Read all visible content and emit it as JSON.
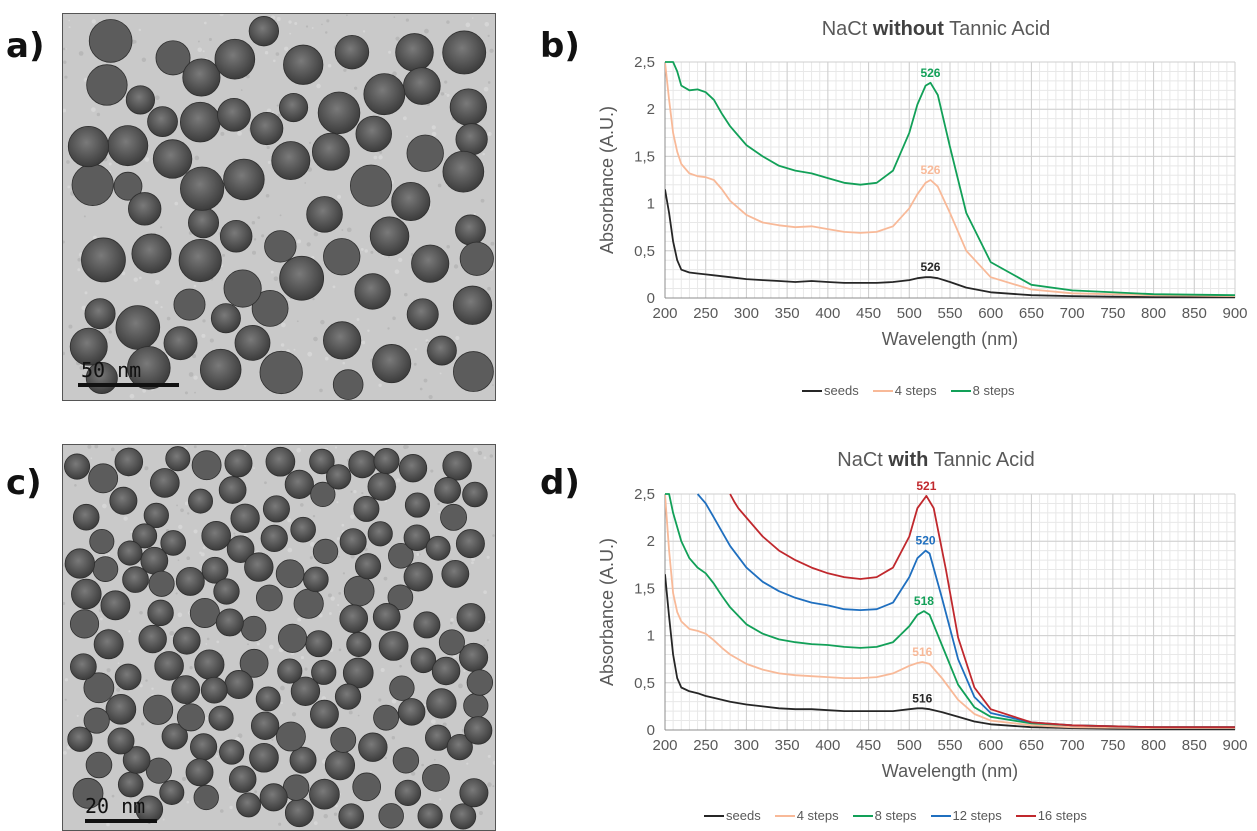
{
  "panels": {
    "a": {
      "label": "a)",
      "scale_label": "50 nm"
    },
    "b": {
      "label": "b)"
    },
    "c": {
      "label": "c)",
      "scale_label": "20 nm"
    },
    "d": {
      "label": "d)"
    }
  },
  "chart_data": [
    {
      "type": "line",
      "title_pre": "NaCt ",
      "title_bold": "without",
      "title_post": " Tannic Acid",
      "xlabel": "Wavelength (nm)",
      "ylabel": "Absorbance (A.U.)",
      "xlim": [
        200,
        900
      ],
      "ylim": [
        0,
        2.5
      ],
      "xticks": [
        "200",
        "250",
        "300",
        "350",
        "400",
        "450",
        "500",
        "550",
        "600",
        "650",
        "700",
        "750",
        "800",
        "850",
        "900"
      ],
      "yticks": [
        "0",
        "0,5",
        "1",
        "1,5",
        "2",
        "2,5"
      ],
      "grid": true,
      "legend_position": "bottom",
      "series": [
        {
          "name": "seeds",
          "color": "#262626",
          "peak_label": "526",
          "peak_x": 526,
          "peak_y": 0.22,
          "x": [
            200,
            205,
            210,
            215,
            220,
            230,
            240,
            250,
            260,
            280,
            300,
            320,
            340,
            360,
            380,
            400,
            420,
            440,
            460,
            480,
            500,
            510,
            520,
            526,
            535,
            550,
            570,
            600,
            650,
            700,
            800,
            900
          ],
          "y": [
            1.15,
            0.9,
            0.6,
            0.4,
            0.3,
            0.27,
            0.26,
            0.25,
            0.24,
            0.22,
            0.2,
            0.19,
            0.18,
            0.17,
            0.18,
            0.17,
            0.16,
            0.16,
            0.16,
            0.17,
            0.19,
            0.21,
            0.22,
            0.22,
            0.21,
            0.17,
            0.11,
            0.06,
            0.03,
            0.02,
            0.01,
            0.01
          ]
        },
        {
          "name": "4 steps",
          "color": "#F8B998",
          "peak_label": "526",
          "peak_x": 526,
          "peak_y": 1.25,
          "x": [
            200,
            205,
            210,
            215,
            220,
            230,
            240,
            250,
            260,
            270,
            280,
            300,
            320,
            340,
            360,
            380,
            400,
            420,
            440,
            460,
            480,
            500,
            510,
            520,
            526,
            535,
            550,
            570,
            600,
            650,
            700,
            800,
            900
          ],
          "y": [
            2.5,
            2.1,
            1.75,
            1.55,
            1.42,
            1.32,
            1.29,
            1.28,
            1.25,
            1.15,
            1.03,
            0.88,
            0.8,
            0.77,
            0.75,
            0.76,
            0.73,
            0.7,
            0.69,
            0.7,
            0.76,
            0.95,
            1.1,
            1.22,
            1.25,
            1.18,
            0.9,
            0.5,
            0.22,
            0.09,
            0.05,
            0.03,
            0.02
          ]
        },
        {
          "name": "8 steps",
          "color": "#12A058",
          "peak_label": "526",
          "peak_x": 526,
          "peak_y": 2.28,
          "x": [
            200,
            205,
            210,
            215,
            220,
            230,
            240,
            250,
            260,
            270,
            280,
            300,
            320,
            340,
            360,
            380,
            400,
            420,
            440,
            460,
            480,
            500,
            510,
            520,
            526,
            535,
            550,
            570,
            600,
            650,
            700,
            800,
            900
          ],
          "y": [
            2.5,
            2.5,
            2.5,
            2.4,
            2.25,
            2.2,
            2.21,
            2.18,
            2.1,
            1.95,
            1.82,
            1.62,
            1.5,
            1.4,
            1.35,
            1.32,
            1.27,
            1.22,
            1.2,
            1.22,
            1.35,
            1.75,
            2.05,
            2.25,
            2.28,
            2.15,
            1.6,
            0.9,
            0.38,
            0.14,
            0.08,
            0.04,
            0.03
          ]
        }
      ]
    },
    {
      "type": "line",
      "title_pre": "NaCt ",
      "title_bold": "with",
      "title_post": " Tannic Acid",
      "xlabel": "Wavelength (nm)",
      "ylabel": "Absorbance (A.U.)",
      "xlim": [
        200,
        900
      ],
      "ylim": [
        0,
        2.5
      ],
      "xticks": [
        "200",
        "250",
        "300",
        "350",
        "400",
        "450",
        "500",
        "550",
        "600",
        "650",
        "700",
        "750",
        "800",
        "850",
        "900"
      ],
      "yticks": [
        "0",
        "0,5",
        "1",
        "1,5",
        "2",
        "2,5"
      ],
      "grid": true,
      "legend_position": "bottom",
      "series": [
        {
          "name": "seeds",
          "color": "#262626",
          "peak_label": "516",
          "peak_x": 516,
          "peak_y": 0.23,
          "x": [
            200,
            205,
            210,
            215,
            220,
            230,
            240,
            250,
            260,
            280,
            300,
            320,
            340,
            360,
            380,
            400,
            420,
            440,
            460,
            480,
            500,
            510,
            516,
            525,
            540,
            560,
            580,
            600,
            650,
            700,
            800,
            900
          ],
          "y": [
            1.65,
            1.2,
            0.8,
            0.55,
            0.45,
            0.41,
            0.39,
            0.36,
            0.34,
            0.3,
            0.27,
            0.25,
            0.23,
            0.22,
            0.22,
            0.21,
            0.2,
            0.2,
            0.2,
            0.2,
            0.22,
            0.23,
            0.23,
            0.22,
            0.19,
            0.14,
            0.09,
            0.06,
            0.03,
            0.02,
            0.01,
            0.01
          ]
        },
        {
          "name": "4 steps",
          "color": "#F8B998",
          "peak_label": "516",
          "peak_x": 516,
          "peak_y": 0.72,
          "x": [
            200,
            205,
            210,
            215,
            220,
            230,
            240,
            250,
            260,
            270,
            280,
            300,
            320,
            340,
            360,
            380,
            400,
            420,
            440,
            460,
            480,
            500,
            510,
            516,
            525,
            540,
            560,
            580,
            600,
            650,
            700,
            800,
            900
          ],
          "y": [
            2.5,
            1.9,
            1.45,
            1.25,
            1.15,
            1.07,
            1.05,
            1.02,
            0.95,
            0.87,
            0.8,
            0.7,
            0.64,
            0.6,
            0.58,
            0.57,
            0.56,
            0.55,
            0.55,
            0.56,
            0.6,
            0.68,
            0.71,
            0.72,
            0.7,
            0.55,
            0.32,
            0.17,
            0.1,
            0.05,
            0.03,
            0.02,
            0.02
          ]
        },
        {
          "name": "8 steps",
          "color": "#12A058",
          "peak_label": "518",
          "peak_x": 518,
          "peak_y": 1.26,
          "x": [
            200,
            205,
            210,
            220,
            230,
            240,
            250,
            260,
            270,
            280,
            300,
            320,
            340,
            360,
            380,
            400,
            420,
            440,
            460,
            480,
            500,
            510,
            518,
            525,
            540,
            560,
            580,
            600,
            650,
            700,
            800,
            900
          ],
          "y": [
            2.5,
            2.5,
            2.3,
            2.0,
            1.82,
            1.72,
            1.66,
            1.55,
            1.42,
            1.3,
            1.12,
            1.02,
            0.96,
            0.93,
            0.91,
            0.9,
            0.88,
            0.87,
            0.88,
            0.93,
            1.1,
            1.22,
            1.26,
            1.22,
            0.9,
            0.48,
            0.24,
            0.14,
            0.07,
            0.05,
            0.03,
            0.03
          ]
        },
        {
          "name": "12 steps",
          "color": "#1F6FBF",
          "peak_label": "520",
          "peak_x": 520,
          "peak_y": 1.9,
          "x": [
            240,
            245,
            250,
            260,
            270,
            280,
            300,
            320,
            340,
            360,
            380,
            400,
            420,
            440,
            460,
            480,
            500,
            510,
            520,
            525,
            540,
            560,
            580,
            600,
            650,
            700,
            800,
            900
          ],
          "y": [
            2.5,
            2.45,
            2.4,
            2.25,
            2.1,
            1.95,
            1.72,
            1.57,
            1.47,
            1.4,
            1.35,
            1.32,
            1.28,
            1.27,
            1.28,
            1.35,
            1.62,
            1.82,
            1.9,
            1.87,
            1.4,
            0.75,
            0.35,
            0.18,
            0.08,
            0.05,
            0.03,
            0.03
          ]
        },
        {
          "name": "16 steps",
          "color": "#C0282D",
          "peak_label": "521",
          "peak_x": 521,
          "peak_y": 2.48,
          "x": [
            280,
            285,
            290,
            300,
            320,
            340,
            360,
            380,
            400,
            420,
            440,
            460,
            480,
            500,
            510,
            521,
            530,
            545,
            560,
            580,
            600,
            650,
            700,
            800,
            900
          ],
          "y": [
            2.5,
            2.42,
            2.35,
            2.25,
            2.05,
            1.9,
            1.8,
            1.72,
            1.66,
            1.62,
            1.6,
            1.62,
            1.72,
            2.05,
            2.35,
            2.48,
            2.35,
            1.7,
            0.98,
            0.45,
            0.22,
            0.08,
            0.05,
            0.03,
            0.03
          ]
        }
      ]
    }
  ]
}
